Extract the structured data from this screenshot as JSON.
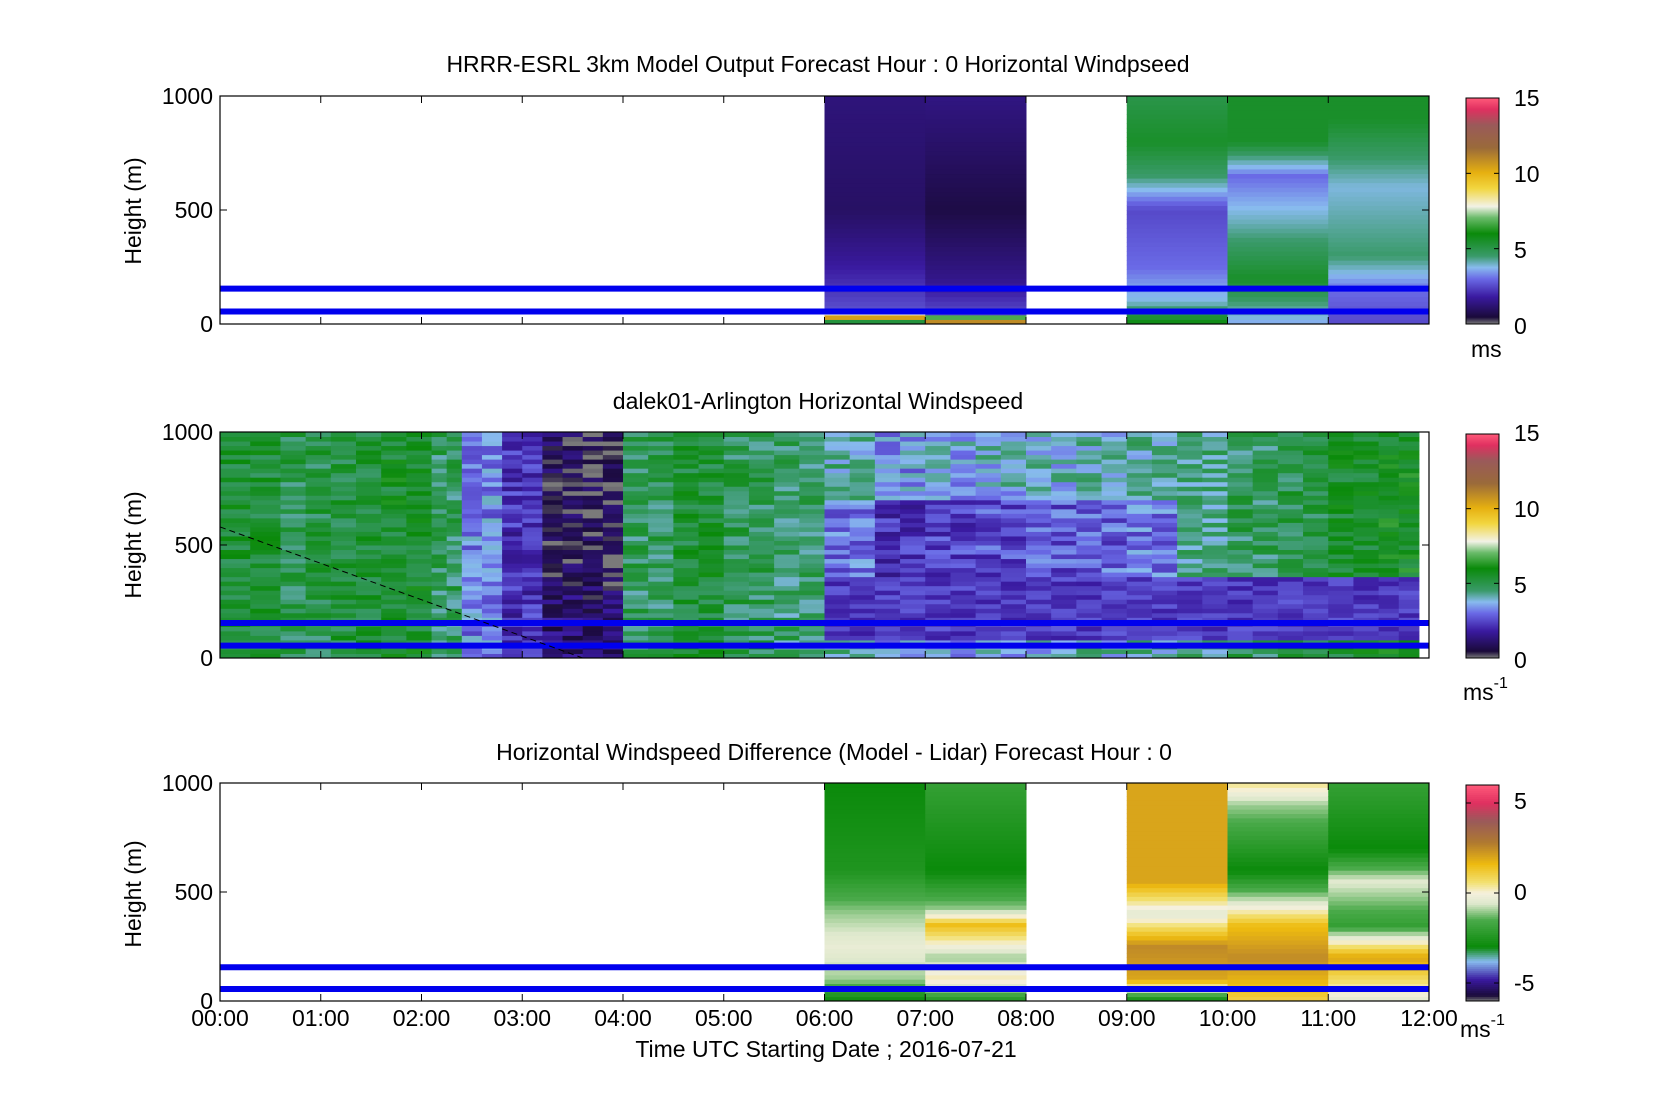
{
  "figure": {
    "xlabel": "Time UTC  Starting Date ; 2016-07-21",
    "xticks": [
      "00:00",
      "01:00",
      "02:00",
      "03:00",
      "04:00",
      "05:00",
      "06:00",
      "07:00",
      "08:00",
      "09:00",
      "10:00",
      "11:00",
      "12:00"
    ]
  },
  "chart_data": [
    {
      "type": "heatmap",
      "title": "HRRR-ESRL 3km Model Output   Forecast Hour : 0 Horizontal Windpseed",
      "ylabel": "Height (m)",
      "xlim": [
        0,
        12
      ],
      "ylim": [
        0,
        1000
      ],
      "yticks": [
        "0",
        "500",
        "1000"
      ],
      "colorbar": {
        "range": [
          0,
          15
        ],
        "ticks": [
          "0",
          "5",
          "10",
          "15"
        ],
        "unit": "ms"
      },
      "horizontal_lines_m": [
        55,
        155
      ],
      "line_color": "#0000ee",
      "hour_blocks": [
        {
          "start": 6,
          "end": 7,
          "profile": [
            [
              0,
              2.6
            ],
            [
              40,
              13
            ],
            [
              60,
              2.6
            ],
            [
              300,
              1.6
            ],
            [
              500,
              1.0
            ],
            [
              1000,
              1.3
            ]
          ]
        },
        {
          "start": 7,
          "end": 8,
          "profile": [
            [
              0,
              13
            ],
            [
              50,
              2.5
            ],
            [
              200,
              1.5
            ],
            [
              500,
              0.6
            ],
            [
              1000,
              1.4
            ]
          ]
        },
        {
          "start": 9,
          "end": 10,
          "profile": [
            [
              0,
              6
            ],
            [
              100,
              3.8
            ],
            [
              250,
              3.0
            ],
            [
              500,
              2.5
            ],
            [
              650,
              4.5
            ],
            [
              800,
              5.5
            ],
            [
              1000,
              5.0
            ]
          ]
        },
        {
          "start": 10,
          "end": 11,
          "profile": [
            [
              0,
              3.5
            ],
            [
              200,
              5.5
            ],
            [
              450,
              4.0
            ],
            [
              650,
              3.0
            ],
            [
              800,
              5.5
            ],
            [
              1000,
              5.5
            ]
          ]
        },
        {
          "start": 11,
          "end": 12,
          "profile": [
            [
              0,
              2.5
            ],
            [
              150,
              3.0
            ],
            [
              300,
              4.5
            ],
            [
              600,
              3.8
            ],
            [
              900,
              5.5
            ],
            [
              1000,
              5.5
            ]
          ]
        }
      ]
    },
    {
      "type": "heatmap",
      "title": "dalek01-Arlington  Horizontal Windspeed",
      "ylabel": "Height (m)",
      "xlim": [
        0,
        12
      ],
      "ylim": [
        0,
        1000
      ],
      "yticks": [
        "0",
        "500",
        "1000"
      ],
      "colorbar": {
        "range": [
          0,
          15
        ],
        "ticks": [
          "0",
          "5",
          "10",
          "15"
        ],
        "unit": "ms-1"
      },
      "horizontal_lines_m": [
        55,
        155
      ],
      "line_color": "#0000ee",
      "dashed_line": {
        "from": [
          0,
          580
        ],
        "to": [
          3.6,
          0
        ]
      },
      "data_end_hour": 11.9,
      "columns": [
        {
          "t": 0.0,
          "v": 5.3
        },
        {
          "t": 0.6,
          "v": 5.0
        },
        {
          "t": 1.1,
          "v": 5.2
        },
        {
          "t": 1.6,
          "v": 5.5
        },
        {
          "t": 2.1,
          "v": 4.8
        },
        {
          "t": 2.4,
          "v": 3.2
        },
        {
          "t": 2.8,
          "v": 2.2
        },
        {
          "t": 3.2,
          "v": 1.2
        },
        {
          "t": 3.6,
          "v": 1.0
        },
        {
          "t": 4.0,
          "v": 4.8
        },
        {
          "t": 4.5,
          "v": 5.3
        },
        {
          "t": 5.0,
          "v": 4.9
        },
        {
          "t": 5.5,
          "v": 4.6
        },
        {
          "t": 6.0,
          "v": 4.2
        },
        {
          "t": 6.5,
          "v": 3.4
        },
        {
          "t": 7.0,
          "v": 3.6
        },
        {
          "t": 7.5,
          "v": 3.8
        },
        {
          "t": 8.0,
          "v": 3.9
        },
        {
          "t": 8.5,
          "v": 4.0
        },
        {
          "t": 9.0,
          "v": 4.2
        },
        {
          "t": 9.5,
          "v": 4.3
        },
        {
          "t": 10.0,
          "v": 4.8
        },
        {
          "t": 10.5,
          "v": 5.0
        },
        {
          "t": 11.0,
          "v": 5.4
        },
        {
          "t": 11.5,
          "v": 5.7
        }
      ]
    },
    {
      "type": "heatmap",
      "title": "Horizontal Windspeed Difference (Model - Lidar) Forecast Hour : 0",
      "ylabel": "Height (m)",
      "xlim": [
        0,
        12
      ],
      "ylim": [
        0,
        1000
      ],
      "yticks": [
        "0",
        "500",
        "1000"
      ],
      "colorbar": {
        "range": [
          -6,
          6
        ],
        "ticks": [
          "-5",
          "0",
          "5"
        ],
        "unit": "ms-1"
      },
      "horizontal_lines_m": [
        55,
        155
      ],
      "line_color": "#0000ee",
      "hour_blocks": [
        {
          "start": 6,
          "end": 7,
          "profile": [
            [
              0,
              -3
            ],
            [
              100,
              -1
            ],
            [
              250,
              -0.3
            ],
            [
              400,
              -1
            ],
            [
              600,
              -2.5
            ],
            [
              1000,
              -3
            ]
          ]
        },
        {
          "start": 7,
          "end": 8,
          "profile": [
            [
              0,
              -2.5
            ],
            [
              100,
              0.3
            ],
            [
              200,
              -1
            ],
            [
              350,
              1.5
            ],
            [
              420,
              -1
            ],
            [
              600,
              -3
            ],
            [
              1000,
              -2
            ]
          ]
        },
        {
          "start": 9,
          "end": 10,
          "profile": [
            [
              0,
              -3
            ],
            [
              100,
              2
            ],
            [
              250,
              2.5
            ],
            [
              400,
              -0.5
            ],
            [
              550,
              2
            ],
            [
              1000,
              2
            ]
          ]
        },
        {
          "start": 10,
          "end": 11,
          "profile": [
            [
              0,
              1
            ],
            [
              200,
              2.5
            ],
            [
              350,
              1.5
            ],
            [
              450,
              -0.5
            ],
            [
              600,
              -3
            ],
            [
              900,
              -1
            ],
            [
              1000,
              0.5
            ]
          ]
        },
        {
          "start": 11,
          "end": 12,
          "profile": [
            [
              0,
              -0.5
            ],
            [
              200,
              2
            ],
            [
              350,
              -2
            ],
            [
              550,
              -0.5
            ],
            [
              700,
              -3
            ],
            [
              1000,
              -2
            ]
          ]
        }
      ]
    }
  ]
}
